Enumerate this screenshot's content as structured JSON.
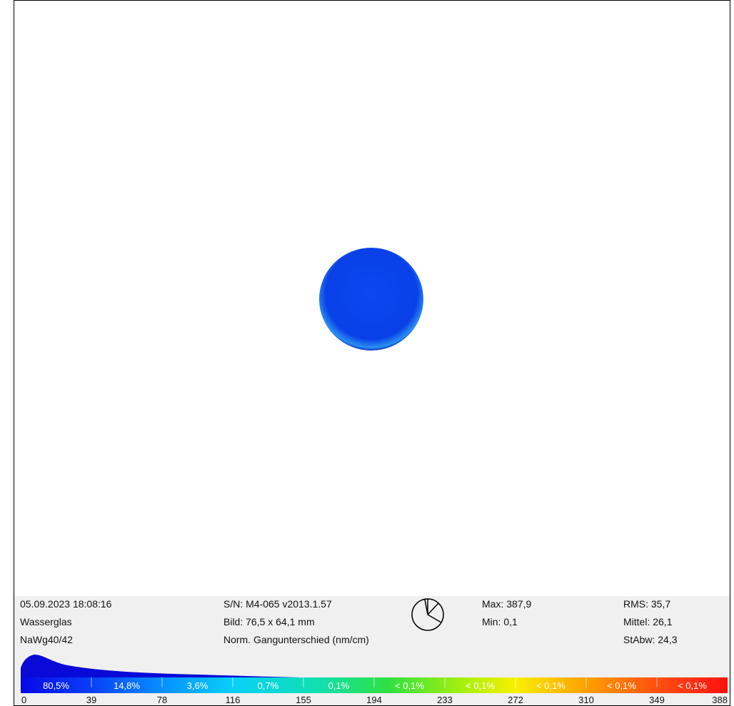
{
  "info": {
    "date": "05.09.2023 18:08:16",
    "material": "Wasserglas",
    "sample": "NaWg40/42",
    "serial": "S/N: M4-065 v2013.1.57",
    "image_size": "Bild: 76,5 x 64,1 mm",
    "quantity": "Norm. Gangunterschied (nm/cm)",
    "max": "Max: 387,9",
    "min": "Min:  0,1",
    "rms": "RMS:  35,7",
    "mean": "Mittel:  26,1",
    "std": "StAbw: 24,3"
  },
  "scale": {
    "percentages": [
      "80,5%",
      "14,8%",
      "3,6%",
      "0,7%",
      "0,1%",
      "< 0,1%",
      "< 0,1%",
      "< 0,1%",
      "< 0,1%",
      "< 0,1%"
    ],
    "ticks": [
      "0",
      "39",
      "78",
      "116",
      "155",
      "194",
      "233",
      "272",
      "310",
      "349",
      "388"
    ]
  }
}
